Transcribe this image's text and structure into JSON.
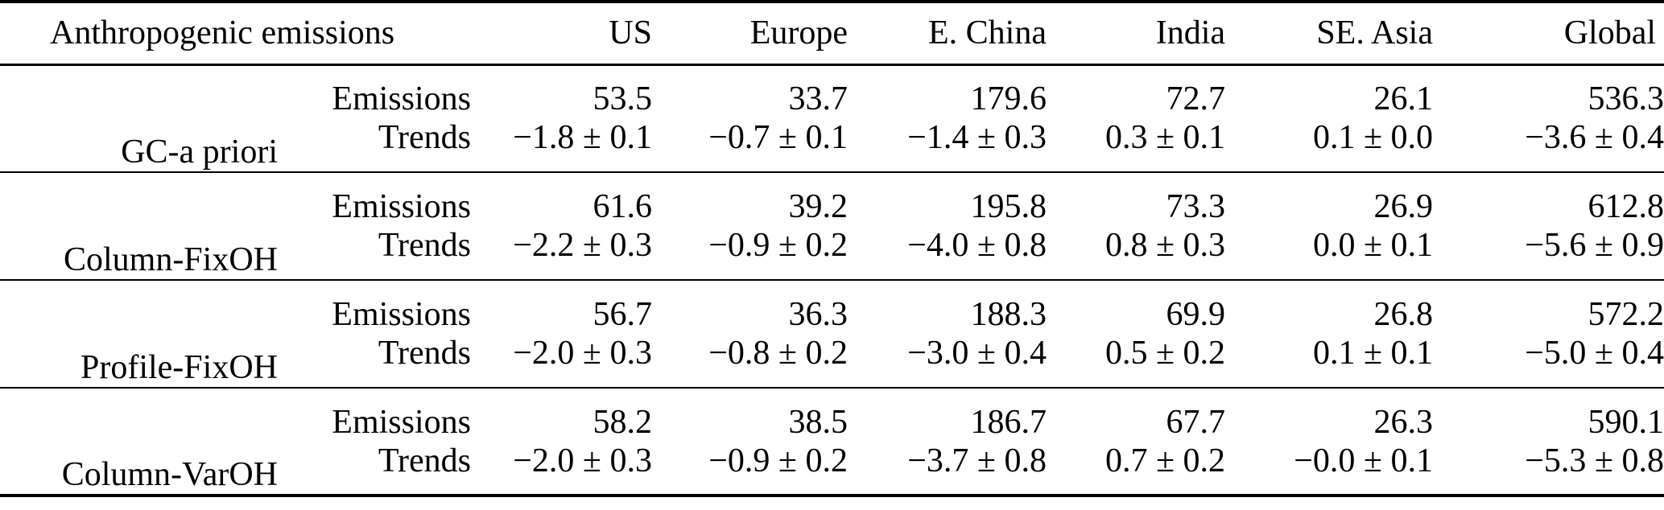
{
  "table": {
    "header": {
      "label": "Anthropogenic emissions",
      "columns": [
        "US",
        "Europe",
        "E. China",
        "India",
        "SE. Asia",
        "Global"
      ]
    },
    "row_labels": {
      "emissions": "Emissions",
      "trends": "Trends"
    },
    "groups": [
      {
        "name": "GC-a priori",
        "emissions": [
          "53.5",
          "33.7",
          "179.6",
          "72.7",
          "26.1",
          "536.3"
        ],
        "trends": [
          "−1.8 ± 0.1",
          "−0.7 ± 0.1",
          "−1.4 ± 0.3",
          "0.3 ± 0.1",
          "0.1 ± 0.0",
          "−3.6 ± 0.4"
        ]
      },
      {
        "name": "Column-FixOH",
        "emissions": [
          "61.6",
          "39.2",
          "195.8",
          "73.3",
          "26.9",
          "612.8"
        ],
        "trends": [
          "−2.2 ± 0.3",
          "−0.9 ± 0.2",
          "−4.0 ± 0.8",
          "0.8 ± 0.3",
          "0.0 ± 0.1",
          "−5.6 ± 0.9"
        ]
      },
      {
        "name": "Profile-FixOH",
        "emissions": [
          "56.7",
          "36.3",
          "188.3",
          "69.9",
          "26.8",
          "572.2"
        ],
        "trends": [
          "−2.0 ± 0.3",
          "−0.8 ± 0.2",
          "−3.0 ± 0.4",
          "0.5 ± 0.2",
          "0.1 ± 0.1",
          "−5.0 ± 0.4"
        ]
      },
      {
        "name": "Column-VarOH",
        "emissions": [
          "58.2",
          "38.5",
          "186.7",
          "67.7",
          "26.3",
          "590.1"
        ],
        "trends": [
          "−2.0 ± 0.3",
          "−0.9 ± 0.2",
          "−3.7 ± 0.8",
          "0.7 ± 0.2",
          "−0.0 ± 0.1",
          "−5.3 ± 0.8"
        ]
      }
    ],
    "colors": {
      "text": "#000000",
      "background": "#ffffff",
      "rule": "#000000"
    }
  }
}
